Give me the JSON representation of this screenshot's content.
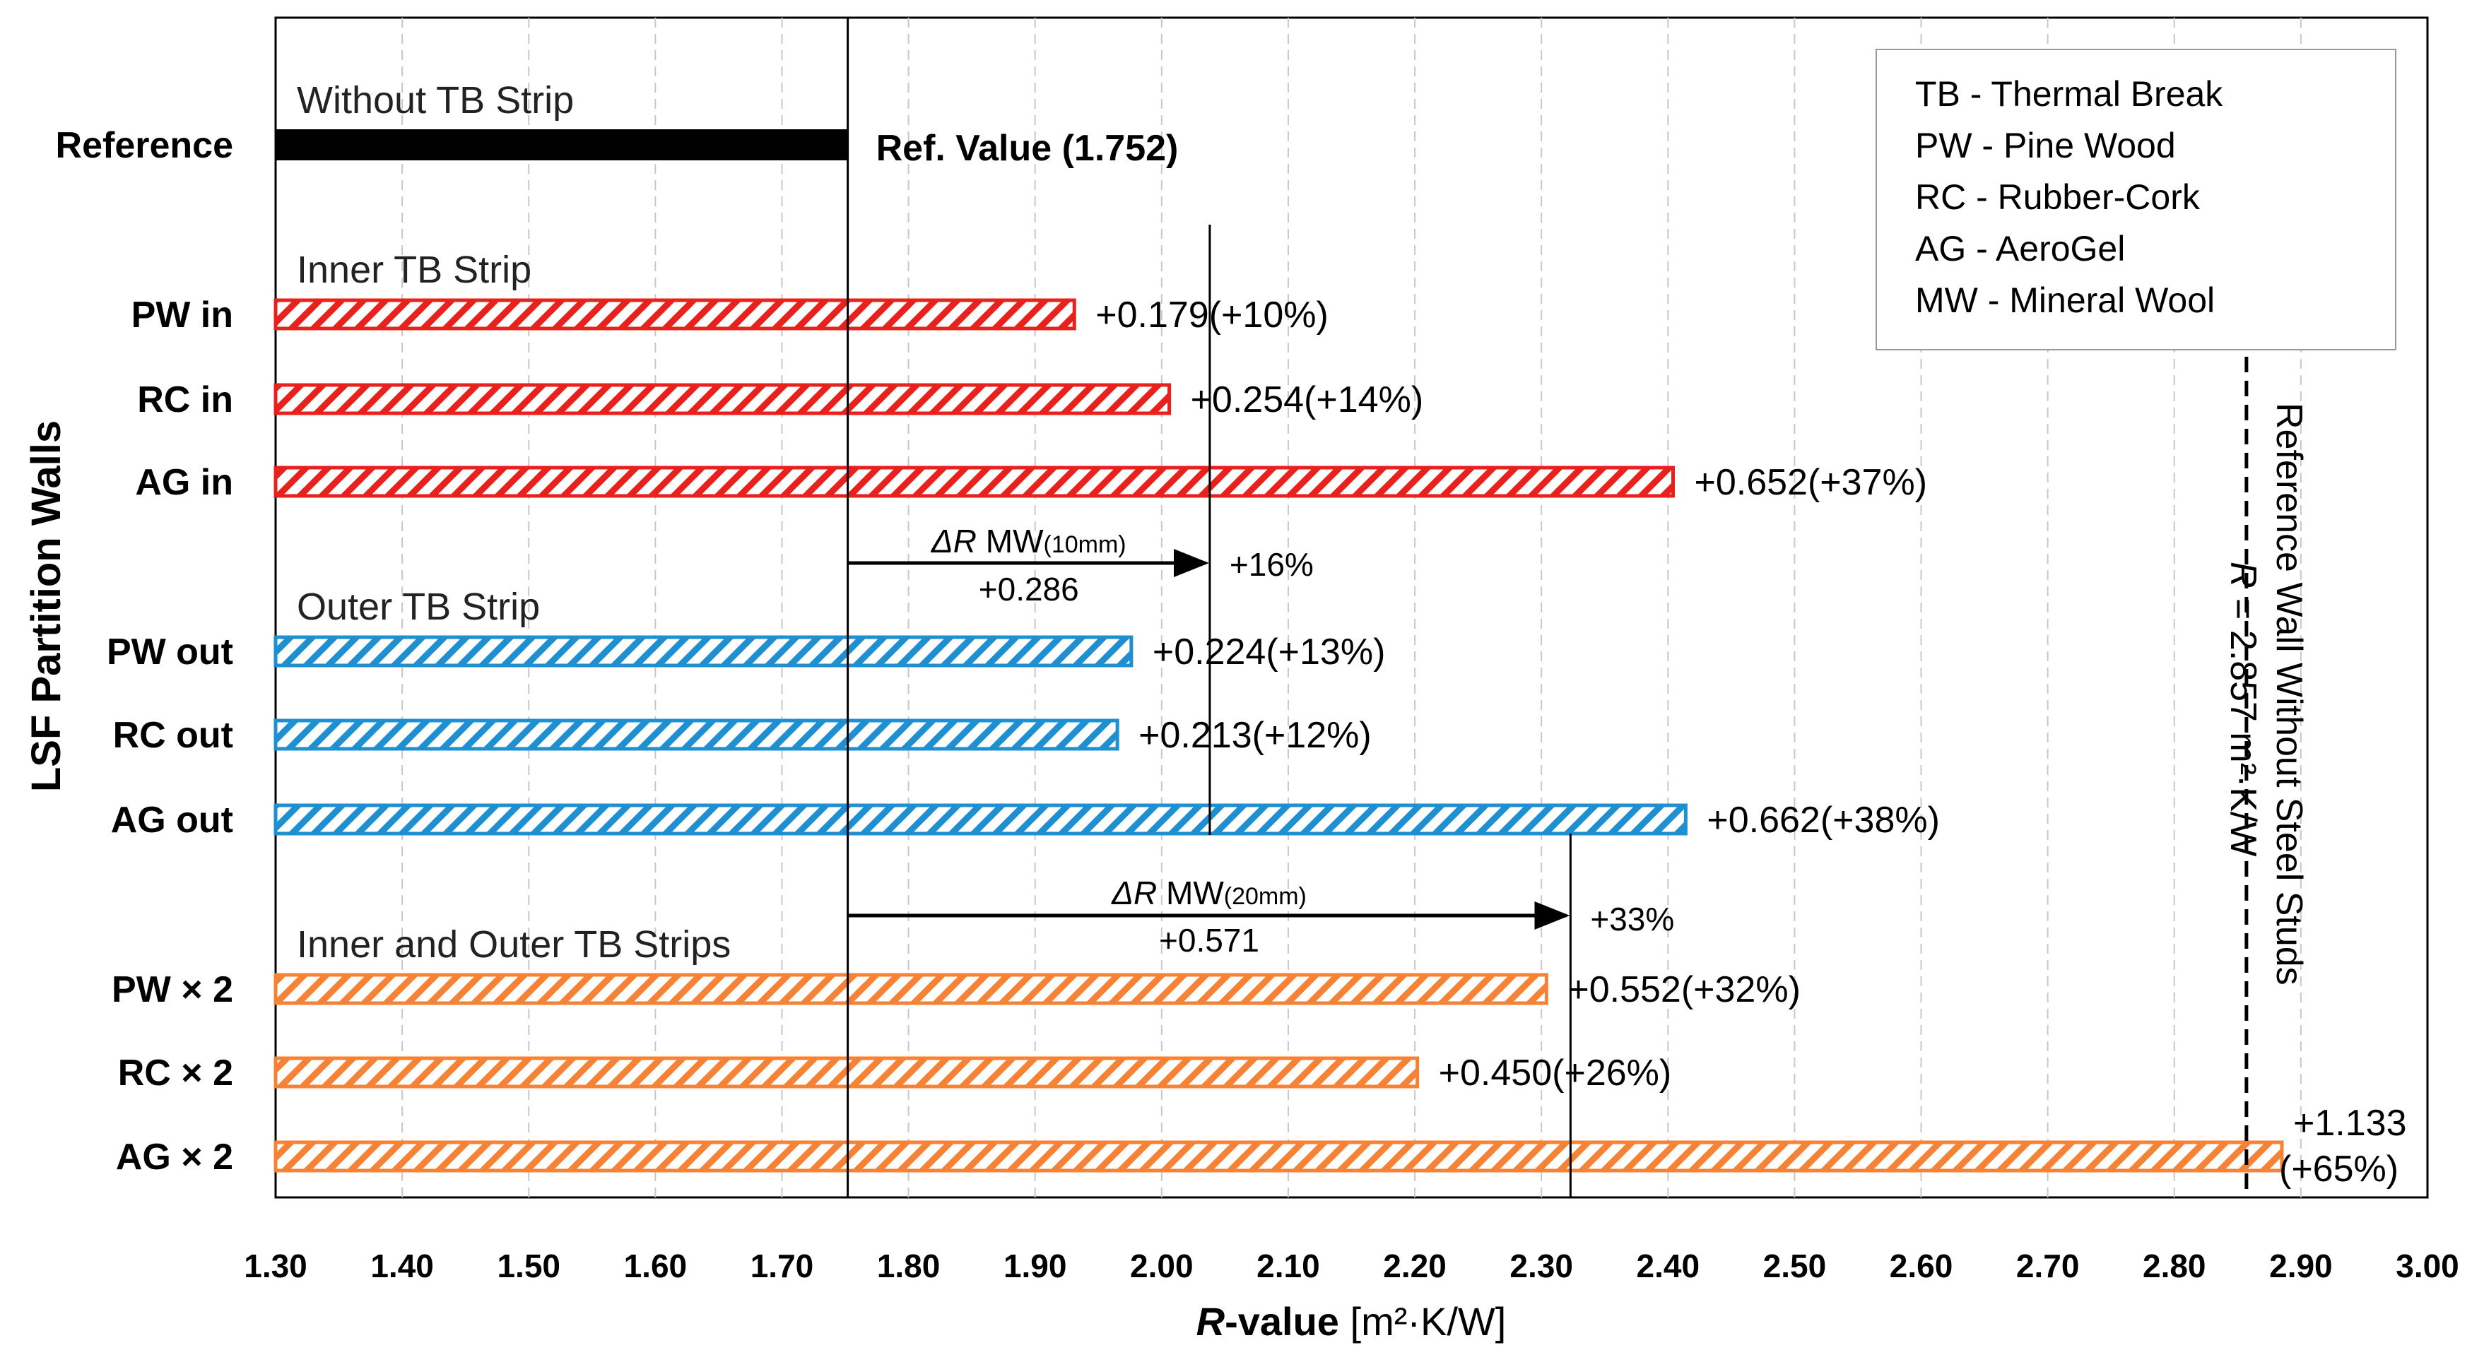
{
  "chart_data": {
    "type": "bar",
    "orientation": "horizontal",
    "xlabel_italic": "R",
    "xlabel_rest": "-value",
    "xlabel_units": "[m²·K/W]",
    "ylabel": "LSF Partition  Walls",
    "xlim": [
      1.3,
      3.0
    ],
    "xticks": [
      "1.30",
      "1.40",
      "1.50",
      "1.60",
      "1.70",
      "1.80",
      "1.90",
      "2.00",
      "2.10",
      "2.20",
      "2.30",
      "2.40",
      "2.50",
      "2.60",
      "2.70",
      "2.80",
      "2.90",
      "3.00"
    ],
    "grid": "vertical-dashed",
    "reference": {
      "category": "Reference",
      "value": 1.752,
      "title": "Without TB Strip",
      "label": "Ref. Value (1.752)",
      "color": "#000000"
    },
    "groups": [
      {
        "title": "Inner TB Strip",
        "color": "#e8211d",
        "bars": [
          {
            "category": "PW in",
            "value": 1.931,
            "label": "+0.179(+10%)"
          },
          {
            "category": "RC in",
            "value": 2.006,
            "label": "+0.254(+14%)"
          },
          {
            "category": "AG in",
            "value": 2.404,
            "label": "+0.652(+37%)"
          }
        ]
      },
      {
        "title": "Outer TB Strip",
        "color": "#1e8fd0",
        "bars": [
          {
            "category": "PW out",
            "value": 1.976,
            "label": "+0.224(+13%)"
          },
          {
            "category": "RC out",
            "value": 1.965,
            "label": "+0.213(+12%)"
          },
          {
            "category": "AG out",
            "value": 2.414,
            "label": "+0.662(+38%)"
          }
        ]
      },
      {
        "title": "Inner and Outer TB Strips",
        "color": "#f58235",
        "bars": [
          {
            "category": "PW × 2",
            "value": 2.304,
            "label": "+0.552(+32%)"
          },
          {
            "category": "RC × 2",
            "value": 2.202,
            "label": "+0.450(+26%)"
          },
          {
            "category": "AG × 2",
            "value": 2.885,
            "label_line1": "+1.133",
            "label_line2": "(+65%)"
          }
        ]
      }
    ],
    "annotations": [
      {
        "prefix": "ΔR",
        "name": "MW",
        "sub": "(10mm)",
        "delta": "+0.286",
        "percent": "+16%",
        "from": 1.752,
        "to": 2.038
      },
      {
        "prefix": "ΔR",
        "name": "MW",
        "sub": "(20mm)",
        "delta": "+0.571",
        "percent": "+33%",
        "from": 1.752,
        "to": 2.323
      }
    ],
    "reference_line": {
      "value": 2.857,
      "label_line1": "Reference Wall Without Steel Studs",
      "label_line2_italic": "R",
      "label_line2_rest": " = 2.857 m²·K/W"
    },
    "legend": {
      "position": "top-right",
      "entries": [
        "TB - Thermal Break",
        "PW - Pine Wood",
        "RC - Rubber-Cork",
        "AG - AeroGel",
        "MW - Mineral Wool"
      ]
    }
  }
}
